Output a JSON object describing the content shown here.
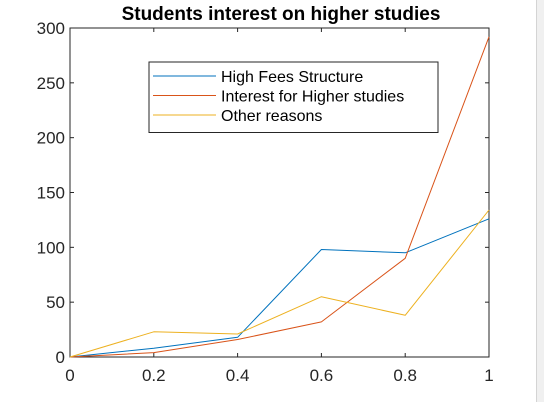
{
  "chart_data": {
    "type": "line",
    "title": "Students interest on higher studies",
    "xlabel": "",
    "ylabel": "",
    "xlim": [
      0,
      1
    ],
    "ylim": [
      0,
      300
    ],
    "x": [
      0,
      0.2,
      0.4,
      0.6,
      0.8,
      1
    ],
    "xticks": [
      "0",
      "0.2",
      "0.4",
      "0.6",
      "0.8",
      "1"
    ],
    "xtick_values": [
      0,
      0.2,
      0.4,
      0.6,
      0.8,
      1
    ],
    "yticks": [
      "0",
      "50",
      "100",
      "150",
      "200",
      "250",
      "300"
    ],
    "ytick_values": [
      0,
      50,
      100,
      150,
      200,
      250,
      300
    ],
    "grid": false,
    "legend_position": "top-center",
    "series": [
      {
        "name": "High Fees Structure",
        "color": "#0072BD",
        "values": [
          0,
          8,
          18,
          98,
          95,
          126
        ]
      },
      {
        "name": "Interest for Higher studies",
        "color": "#D95319",
        "values": [
          0,
          4,
          16,
          32,
          90,
          292
        ]
      },
      {
        "name": "Other reasons",
        "color": "#EDB120",
        "values": [
          0,
          23,
          21,
          55,
          38,
          134
        ]
      }
    ]
  }
}
